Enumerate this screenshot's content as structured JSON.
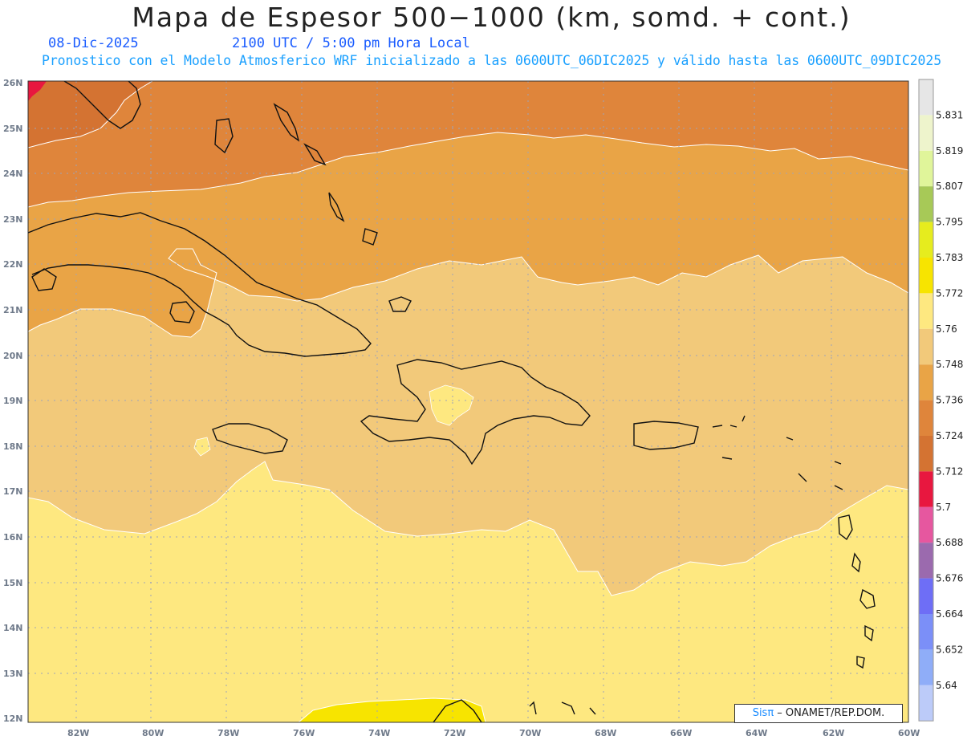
{
  "header": {
    "title": "Mapa de Espesor 500−1000 (km, somd. + cont.)",
    "date": "08-Dic-2025",
    "time": "2100 UTC / 5:00 pm Hora Local",
    "model_info": "Pronostico con el Modelo Atmosferico WRF inicializado a las 0600UTC_06DIC2025 y válido hasta las  0600UTC_09DIC2025"
  },
  "map": {
    "lat_labels": [
      "26N",
      "25N",
      "24N",
      "23N",
      "22N",
      "21N",
      "20N",
      "19N",
      "18N",
      "17N",
      "16N",
      "15N",
      "14N",
      "13N",
      "12N"
    ],
    "lon_labels": [
      "82W",
      "80W",
      "78W",
      "76W",
      "74W",
      "72W",
      "70W",
      "68W",
      "66W",
      "64W",
      "62W",
      "60W"
    ],
    "fill_colors": {
      "ocean_low": "#fee880",
      "mid": "#f2c97a",
      "band_orange": "#e9a446",
      "band_dark": "#df853b",
      "band_darker": "#d47332",
      "red_corner": "#e8173f",
      "yellow_patch": "#f7e400"
    }
  },
  "colorbar": {
    "levels": [
      "5.831",
      "5.819",
      "5.807",
      "5.795",
      "5.783",
      "5.772",
      "5.76",
      "5.748",
      "5.736",
      "5.724",
      "5.712",
      "5.7",
      "5.688",
      "5.676",
      "5.664",
      "5.652",
      "5.64"
    ],
    "colors": [
      "#e6e6e6",
      "#eef4cc",
      "#e0f59a",
      "#a7c957",
      "#e6ec1e",
      "#f7e400",
      "#fee880",
      "#f2c97a",
      "#e9a446",
      "#df853b",
      "#d47332",
      "#e8173f",
      "#e6579f",
      "#9b6aae",
      "#6e6ef6",
      "#7b8ff8",
      "#8fadf8",
      "#bccbf9"
    ]
  },
  "credit": {
    "brand": "Sisπ",
    "text": " – ONAMET/REP.DOM."
  }
}
